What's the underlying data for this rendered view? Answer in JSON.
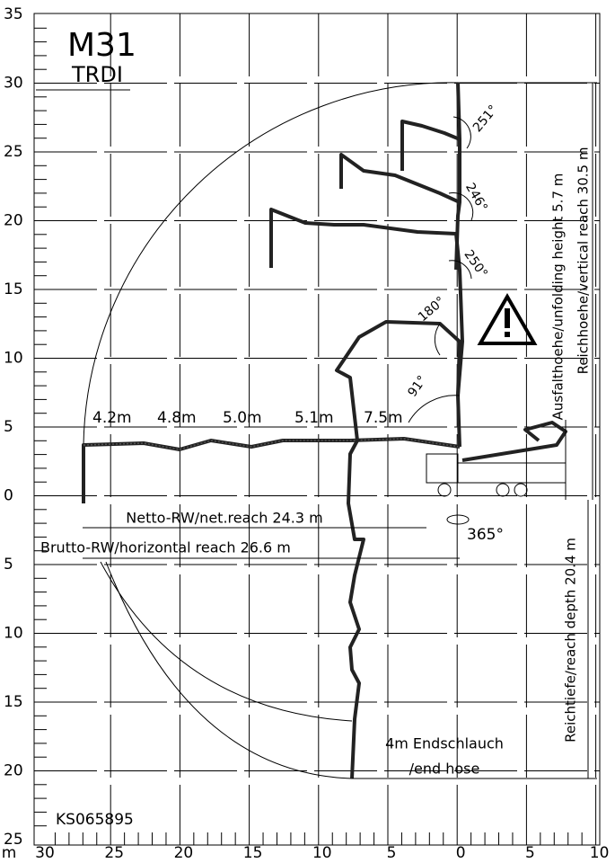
{
  "header": {
    "model": "M31",
    "variant": "TRDI"
  },
  "y_axis_labels": [
    "35",
    "30",
    "25",
    "20",
    "15",
    "10",
    "5",
    "0",
    "5",
    "10",
    "15",
    "20",
    "25"
  ],
  "x_axis_labels": [
    "m",
    "30",
    "25",
    "20",
    "15",
    "10",
    "5",
    "0",
    "5",
    "10"
  ],
  "section_lengths": [
    "4.2m",
    "4.8m",
    "5.0m",
    "5.1m",
    "7.5m"
  ],
  "angles": [
    "251°",
    "246°",
    "250°",
    "180°",
    "91°"
  ],
  "net_reach": "Netto-RW/net.reach 24.3 m",
  "horizontal_reach": "Brutto-RW/horizontal reach 26.6 m",
  "rotation": "365°",
  "unfolding_height": "Ausfalthoehe/unfolding height 5.7 m",
  "vertical_reach": "Reichhoehe/vertical reach 30.5 m",
  "reach_depth": "Reichtiefe/reach depth 20.4 m",
  "end_hose": [
    "4m Endschlauch",
    "/end hose"
  ],
  "drawing_number": "KS065895"
}
